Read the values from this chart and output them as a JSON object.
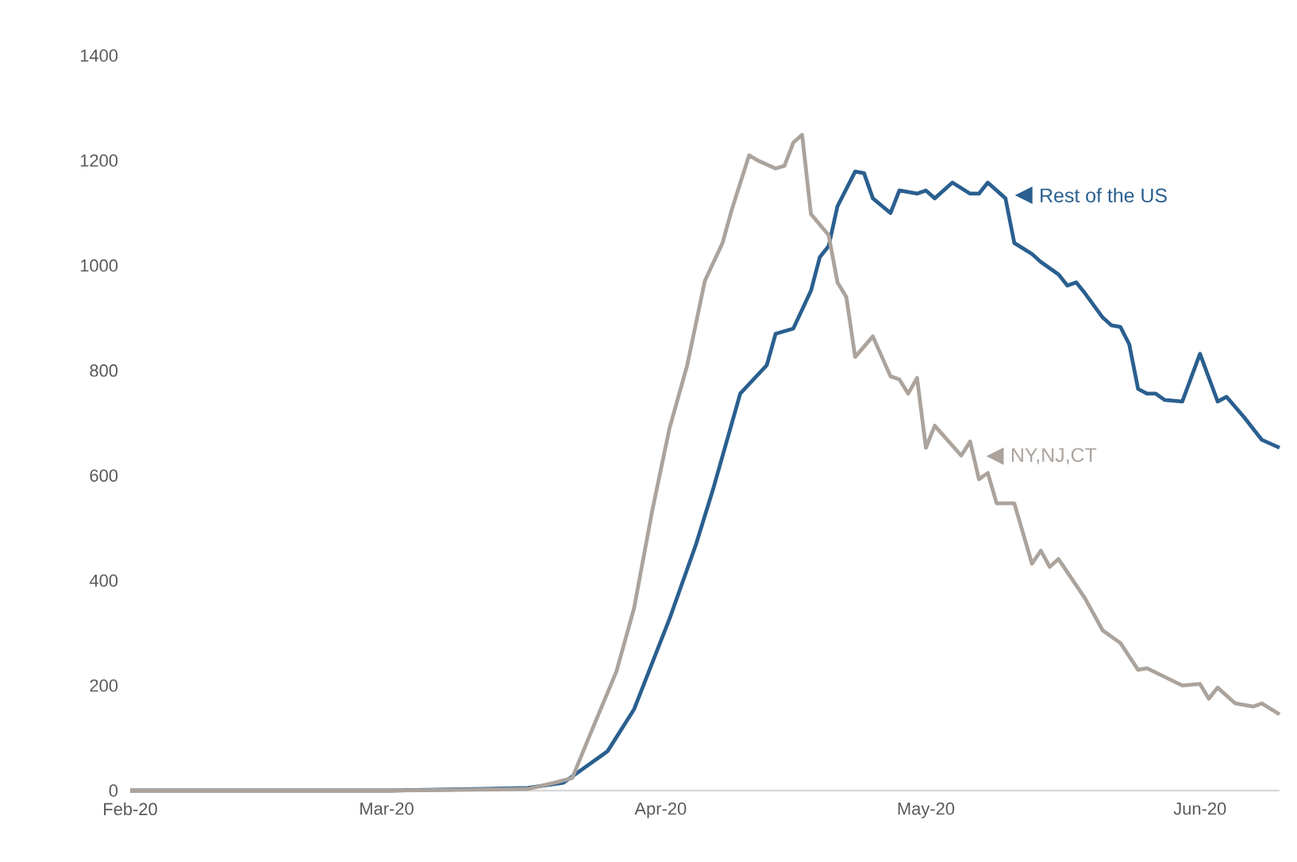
{
  "chart_data": {
    "type": "line",
    "legend": "right",
    "xlim": [
      "2020-02-01",
      "2020-06-10"
    ],
    "ylim": [
      0,
      1400
    ],
    "xticks": [
      {
        "value": "2020-02-01",
        "label": "Feb-20"
      },
      {
        "value": "2020-03-01",
        "label": "Mar-20"
      },
      {
        "value": "2020-04-01",
        "label": "Apr-20"
      },
      {
        "value": "2020-05-01",
        "label": "May-20"
      },
      {
        "value": "2020-06-01",
        "label": "Jun-20"
      }
    ],
    "yticks": [
      0,
      200,
      400,
      600,
      800,
      1000,
      1200,
      1400
    ],
    "series": [
      {
        "name": "Rest of the US",
        "color": "#2a5f8f",
        "x": [
          "2020-02-01",
          "2020-03-01",
          "2020-03-12",
          "2020-03-17",
          "2020-03-21",
          "2020-03-26",
          "2020-03-29",
          "2020-04-02",
          "2020-04-05",
          "2020-04-07",
          "2020-04-10",
          "2020-04-13",
          "2020-04-14",
          "2020-04-16",
          "2020-04-18",
          "2020-04-19",
          "2020-04-20",
          "2020-04-21",
          "2020-04-23",
          "2020-04-24",
          "2020-04-25",
          "2020-04-27",
          "2020-04-28",
          "2020-04-30",
          "2020-05-01",
          "2020-05-02",
          "2020-05-04",
          "2020-05-06",
          "2020-05-07",
          "2020-05-08",
          "2020-05-10",
          "2020-05-11",
          "2020-05-13",
          "2020-05-14",
          "2020-05-16",
          "2020-05-17",
          "2020-05-18",
          "2020-05-19",
          "2020-05-21",
          "2020-05-22",
          "2020-05-23",
          "2020-05-24",
          "2020-05-25",
          "2020-05-26",
          "2020-05-27",
          "2020-05-28",
          "2020-05-30",
          "2020-06-01",
          "2020-06-03",
          "2020-06-04",
          "2020-06-06",
          "2020-06-08",
          "2020-06-10"
        ],
        "values": [
          0,
          0,
          3,
          5,
          15,
          75,
          155,
          327,
          469,
          578,
          756,
          810,
          870,
          880,
          952,
          1016,
          1037,
          1113,
          1179,
          1176,
          1128,
          1100,
          1143,
          1137,
          1143,
          1128,
          1158,
          1137,
          1137,
          1158,
          1128,
          1043,
          1022,
          1007,
          983,
          962,
          968,
          947,
          901,
          886,
          883,
          850,
          765,
          756,
          756,
          744,
          741,
          832,
          741,
          750,
          711,
          668,
          653
        ]
      },
      {
        "name": "NY,NJ,CT",
        "color": "#aba39c",
        "x": [
          "2020-02-01",
          "2020-03-01",
          "2020-03-17",
          "2020-03-20",
          "2020-03-22",
          "2020-03-24",
          "2020-03-27",
          "2020-03-29",
          "2020-03-31",
          "2020-04-02",
          "2020-04-04",
          "2020-04-06",
          "2020-04-08",
          "2020-04-09",
          "2020-04-11",
          "2020-04-12",
          "2020-04-14",
          "2020-04-15",
          "2020-04-16",
          "2020-04-17",
          "2020-04-18",
          "2020-04-20",
          "2020-04-21",
          "2020-04-22",
          "2020-04-23",
          "2020-04-25",
          "2020-04-27",
          "2020-04-28",
          "2020-04-29",
          "2020-04-30",
          "2020-05-01",
          "2020-05-02",
          "2020-05-05",
          "2020-05-06",
          "2020-05-07",
          "2020-05-08",
          "2020-05-09",
          "2020-05-11",
          "2020-05-13",
          "2020-05-14",
          "2020-05-15",
          "2020-05-16",
          "2020-05-19",
          "2020-05-21",
          "2020-05-23",
          "2020-05-25",
          "2020-05-26",
          "2020-05-30",
          "2020-06-01",
          "2020-06-02",
          "2020-06-03",
          "2020-06-05",
          "2020-06-07",
          "2020-06-08",
          "2020-06-10"
        ],
        "values": [
          0,
          0,
          3,
          15,
          24,
          106,
          227,
          348,
          529,
          690,
          810,
          971,
          1043,
          1104,
          1210,
          1200,
          1185,
          1190,
          1234,
          1249,
          1098,
          1058,
          968,
          940,
          826,
          865,
          789,
          783,
          756,
          786,
          653,
          695,
          638,
          665,
          593,
          605,
          547,
          547,
          432,
          457,
          426,
          441,
          366,
          305,
          281,
          230,
          233,
          200,
          203,
          175,
          196,
          166,
          160,
          166,
          145
        ]
      }
    ]
  }
}
